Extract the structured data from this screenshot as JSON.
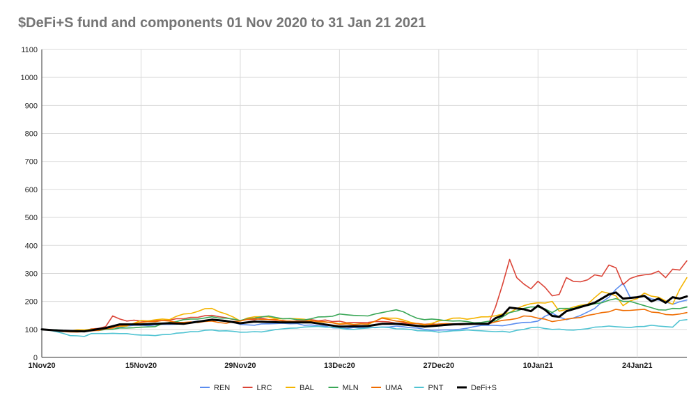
{
  "chart_data": {
    "type": "line",
    "title": "$DeFi+S fund and components 01 Nov 2020 to 31 Jan 21 2021",
    "xlabel": "",
    "ylabel": "",
    "ylim": [
      0,
      1100
    ],
    "yticks": [
      0,
      100,
      200,
      300,
      400,
      500,
      600,
      700,
      800,
      900,
      1000,
      1100
    ],
    "x_tick_labels": [
      {
        "day": 0,
        "label": "1Nov20"
      },
      {
        "day": 14,
        "label": "15Nov20"
      },
      {
        "day": 28,
        "label": "29Nov20"
      },
      {
        "day": 42,
        "label": "13Dec20"
      },
      {
        "day": 56,
        "label": "27Dec20"
      },
      {
        "day": 70,
        "label": "10Jan21"
      },
      {
        "day": 84,
        "label": "24Jan21"
      }
    ],
    "x_count": 92,
    "grid": true,
    "legend_position": "bottom",
    "series": [
      {
        "name": "REN",
        "color": "#5b8def",
        "width": 1.6,
        "anchors": [
          [
            0,
            100
          ],
          [
            3,
            92
          ],
          [
            6,
            95
          ],
          [
            9,
            105
          ],
          [
            12,
            112
          ],
          [
            14,
            115
          ],
          [
            18,
            118
          ],
          [
            20,
            120
          ],
          [
            24,
            135
          ],
          [
            26,
            132
          ],
          [
            28,
            118
          ],
          [
            30,
            115
          ],
          [
            34,
            122
          ],
          [
            38,
            116
          ],
          [
            42,
            105
          ],
          [
            46,
            108
          ],
          [
            50,
            112
          ],
          [
            54,
            100
          ],
          [
            58,
            98
          ],
          [
            61,
            110
          ],
          [
            63,
            115
          ],
          [
            65,
            113
          ],
          [
            68,
            125
          ],
          [
            70,
            130
          ],
          [
            72,
            158
          ],
          [
            74,
            135
          ],
          [
            76,
            150
          ],
          [
            78,
            175
          ],
          [
            80,
            215
          ],
          [
            82,
            265
          ],
          [
            83,
            215
          ],
          [
            85,
            220
          ],
          [
            87,
            205
          ],
          [
            89,
            190
          ],
          [
            91,
            205
          ]
        ]
      },
      {
        "name": "LRC",
        "color": "#db4437",
        "width": 1.6,
        "anchors": [
          [
            0,
            100
          ],
          [
            3,
            95
          ],
          [
            6,
            95
          ],
          [
            9,
            110
          ],
          [
            10,
            148
          ],
          [
            12,
            130
          ],
          [
            14,
            130
          ],
          [
            17,
            132
          ],
          [
            20,
            138
          ],
          [
            24,
            150
          ],
          [
            28,
            132
          ],
          [
            31,
            140
          ],
          [
            35,
            128
          ],
          [
            38,
            135
          ],
          [
            41,
            128
          ],
          [
            44,
            125
          ],
          [
            47,
            128
          ],
          [
            50,
            122
          ],
          [
            54,
            118
          ],
          [
            58,
            120
          ],
          [
            61,
            120
          ],
          [
            63,
            120
          ],
          [
            64,
            180
          ],
          [
            65,
            260
          ],
          [
            66,
            350
          ],
          [
            67,
            285
          ],
          [
            68,
            262
          ],
          [
            69,
            245
          ],
          [
            70,
            272
          ],
          [
            71,
            250
          ],
          [
            72,
            220
          ],
          [
            73,
            225
          ],
          [
            74,
            285
          ],
          [
            76,
            270
          ],
          [
            78,
            295
          ],
          [
            79,
            290
          ],
          [
            80,
            330
          ],
          [
            81,
            320
          ],
          [
            82,
            260
          ],
          [
            83,
            282
          ],
          [
            85,
            295
          ],
          [
            86,
            298
          ],
          [
            87,
            308
          ],
          [
            88,
            285
          ],
          [
            89,
            315
          ],
          [
            90,
            312
          ],
          [
            91,
            345
          ]
        ]
      },
      {
        "name": "BAL",
        "color": "#f4b400",
        "width": 1.6,
        "anchors": [
          [
            0,
            100
          ],
          [
            3,
            95
          ],
          [
            6,
            98
          ],
          [
            9,
            105
          ],
          [
            12,
            112
          ],
          [
            14,
            132
          ],
          [
            18,
            135
          ],
          [
            20,
            155
          ],
          [
            24,
            175
          ],
          [
            26,
            155
          ],
          [
            28,
            130
          ],
          [
            30,
            145
          ],
          [
            34,
            138
          ],
          [
            38,
            132
          ],
          [
            42,
            120
          ],
          [
            46,
            118
          ],
          [
            48,
            142
          ],
          [
            50,
            140
          ],
          [
            54,
            115
          ],
          [
            58,
            140
          ],
          [
            61,
            140
          ],
          [
            63,
            145
          ],
          [
            66,
            160
          ],
          [
            68,
            185
          ],
          [
            70,
            195
          ],
          [
            72,
            200
          ],
          [
            73,
            165
          ],
          [
            75,
            180
          ],
          [
            77,
            190
          ],
          [
            79,
            235
          ],
          [
            81,
            220
          ],
          [
            82,
            185
          ],
          [
            84,
            210
          ],
          [
            85,
            230
          ],
          [
            87,
            215
          ],
          [
            89,
            190
          ],
          [
            91,
            285
          ]
        ]
      },
      {
        "name": "MLN",
        "color": "#3aa757",
        "width": 1.6,
        "anchors": [
          [
            0,
            100
          ],
          [
            3,
            95
          ],
          [
            6,
            95
          ],
          [
            9,
            100
          ],
          [
            12,
            105
          ],
          [
            14,
            108
          ],
          [
            16,
            110
          ],
          [
            18,
            125
          ],
          [
            20,
            135
          ],
          [
            24,
            145
          ],
          [
            26,
            140
          ],
          [
            28,
            132
          ],
          [
            30,
            140
          ],
          [
            32,
            148
          ],
          [
            34,
            138
          ],
          [
            36,
            135
          ],
          [
            38,
            138
          ],
          [
            40,
            145
          ],
          [
            42,
            155
          ],
          [
            44,
            150
          ],
          [
            46,
            148
          ],
          [
            48,
            160
          ],
          [
            50,
            170
          ],
          [
            52,
            150
          ],
          [
            54,
            135
          ],
          [
            56,
            135
          ],
          [
            58,
            130
          ],
          [
            60,
            128
          ],
          [
            62,
            125
          ],
          [
            64,
            130
          ],
          [
            66,
            160
          ],
          [
            68,
            175
          ],
          [
            70,
            180
          ],
          [
            72,
            160
          ],
          [
            73,
            175
          ],
          [
            75,
            175
          ],
          [
            77,
            185
          ],
          [
            79,
            195
          ],
          [
            81,
            210
          ],
          [
            83,
            200
          ],
          [
            85,
            185
          ],
          [
            87,
            170
          ],
          [
            89,
            175
          ],
          [
            91,
            180
          ]
        ]
      },
      {
        "name": "UMA",
        "color": "#ef6c00",
        "width": 1.6,
        "anchors": [
          [
            0,
            100
          ],
          [
            3,
            92
          ],
          [
            6,
            92
          ],
          [
            9,
            102
          ],
          [
            12,
            115
          ],
          [
            14,
            125
          ],
          [
            18,
            130
          ],
          [
            20,
            125
          ],
          [
            24,
            130
          ],
          [
            26,
            122
          ],
          [
            28,
            130
          ],
          [
            30,
            138
          ],
          [
            34,
            130
          ],
          [
            38,
            130
          ],
          [
            42,
            118
          ],
          [
            46,
            120
          ],
          [
            48,
            140
          ],
          [
            50,
            130
          ],
          [
            54,
            118
          ],
          [
            58,
            120
          ],
          [
            60,
            118
          ],
          [
            63,
            120
          ],
          [
            66,
            135
          ],
          [
            68,
            148
          ],
          [
            70,
            140
          ],
          [
            72,
            128
          ],
          [
            73,
            132
          ],
          [
            75,
            140
          ],
          [
            77,
            150
          ],
          [
            79,
            160
          ],
          [
            81,
            172
          ],
          [
            83,
            168
          ],
          [
            85,
            172
          ],
          [
            87,
            160
          ],
          [
            89,
            152
          ],
          [
            91,
            160
          ]
        ]
      },
      {
        "name": "PNT",
        "color": "#4fc3d2",
        "width": 1.6,
        "anchors": [
          [
            0,
            100
          ],
          [
            2,
            92
          ],
          [
            4,
            78
          ],
          [
            6,
            75
          ],
          [
            7,
            85
          ],
          [
            9,
            85
          ],
          [
            12,
            85
          ],
          [
            14,
            80
          ],
          [
            16,
            78
          ],
          [
            18,
            82
          ],
          [
            20,
            88
          ],
          [
            22,
            92
          ],
          [
            24,
            98
          ],
          [
            26,
            95
          ],
          [
            28,
            90
          ],
          [
            30,
            92
          ],
          [
            32,
            95
          ],
          [
            34,
            102
          ],
          [
            36,
            105
          ],
          [
            38,
            110
          ],
          [
            40,
            108
          ],
          [
            42,
            105
          ],
          [
            44,
            100
          ],
          [
            46,
            105
          ],
          [
            48,
            108
          ],
          [
            50,
            102
          ],
          [
            52,
            100
          ],
          [
            54,
            95
          ],
          [
            56,
            90
          ],
          [
            58,
            95
          ],
          [
            60,
            98
          ],
          [
            62,
            95
          ],
          [
            64,
            92
          ],
          [
            66,
            90
          ],
          [
            68,
            100
          ],
          [
            70,
            108
          ],
          [
            72,
            100
          ],
          [
            74,
            98
          ],
          [
            76,
            100
          ],
          [
            78,
            108
          ],
          [
            80,
            112
          ],
          [
            82,
            108
          ],
          [
            84,
            110
          ],
          [
            86,
            115
          ],
          [
            88,
            110
          ],
          [
            89,
            108
          ],
          [
            90,
            132
          ],
          [
            91,
            135
          ]
        ]
      },
      {
        "name": "DeFi+S",
        "color": "#000000",
        "width": 3,
        "anchors": [
          [
            0,
            100
          ],
          [
            3,
            95
          ],
          [
            6,
            93
          ],
          [
            9,
            105
          ],
          [
            11,
            118
          ],
          [
            14,
            118
          ],
          [
            18,
            122
          ],
          [
            20,
            120
          ],
          [
            24,
            135
          ],
          [
            26,
            130
          ],
          [
            28,
            122
          ],
          [
            30,
            128
          ],
          [
            34,
            125
          ],
          [
            38,
            125
          ],
          [
            42,
            110
          ],
          [
            46,
            112
          ],
          [
            48,
            120
          ],
          [
            50,
            120
          ],
          [
            54,
            110
          ],
          [
            58,
            118
          ],
          [
            61,
            120
          ],
          [
            63,
            120
          ],
          [
            64,
            140
          ],
          [
            65,
            150
          ],
          [
            66,
            178
          ],
          [
            68,
            172
          ],
          [
            69,
            165
          ],
          [
            70,
            185
          ],
          [
            71,
            170
          ],
          [
            72,
            148
          ],
          [
            73,
            145
          ],
          [
            74,
            165
          ],
          [
            76,
            180
          ],
          [
            78,
            195
          ],
          [
            80,
            225
          ],
          [
            81,
            232
          ],
          [
            82,
            210
          ],
          [
            84,
            215
          ],
          [
            85,
            220
          ],
          [
            86,
            200
          ],
          [
            87,
            210
          ],
          [
            88,
            195
          ],
          [
            89,
            215
          ],
          [
            90,
            210
          ],
          [
            91,
            218
          ]
        ]
      }
    ]
  }
}
